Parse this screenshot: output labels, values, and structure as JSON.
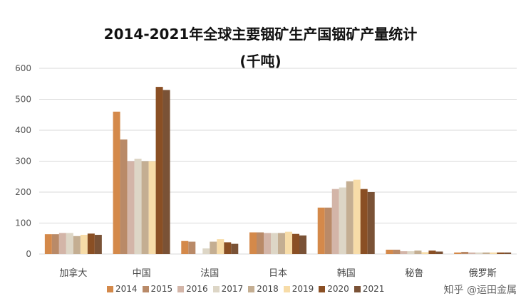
{
  "chart_data": {
    "type": "bar",
    "title": "2014-2021年全球主要铟矿生产国铟矿产量统计",
    "subtitle": "(千吨)",
    "categories": [
      "加拿大",
      "中国",
      "法国",
      "日本",
      "韩国",
      "秘鲁",
      "俄罗斯"
    ],
    "ylim": [
      0,
      600
    ],
    "yticks": [
      0,
      100,
      200,
      300,
      400,
      500,
      600
    ],
    "grid": true,
    "legend_position": "bottom",
    "series": [
      {
        "name": "2014",
        "color": "#D4894A",
        "values": [
          64,
          460,
          42,
          70,
          150,
          14,
          5
        ]
      },
      {
        "name": "2015",
        "color": "#B98A68",
        "values": [
          64,
          370,
          40,
          70,
          150,
          14,
          7
        ]
      },
      {
        "name": "2016",
        "color": "#D3B5A8",
        "values": [
          68,
          300,
          0,
          68,
          210,
          9,
          5
        ]
      },
      {
        "name": "2017",
        "color": "#DDD6C6",
        "values": [
          68,
          308,
          18,
          68,
          215,
          9,
          5
        ]
      },
      {
        "name": "2018",
        "color": "#C4AE92",
        "values": [
          58,
          300,
          40,
          68,
          235,
          11,
          5
        ]
      },
      {
        "name": "2019",
        "color": "#F7DCA8",
        "values": [
          62,
          300,
          48,
          72,
          240,
          6,
          5
        ]
      },
      {
        "name": "2020",
        "color": "#8A4F24",
        "values": [
          66,
          540,
          38,
          65,
          210,
          11,
          5
        ]
      },
      {
        "name": "2021",
        "color": "#7A5236",
        "values": [
          62,
          530,
          33,
          60,
          200,
          8,
          5
        ]
      }
    ]
  },
  "watermark": "知乎 @运田金属"
}
